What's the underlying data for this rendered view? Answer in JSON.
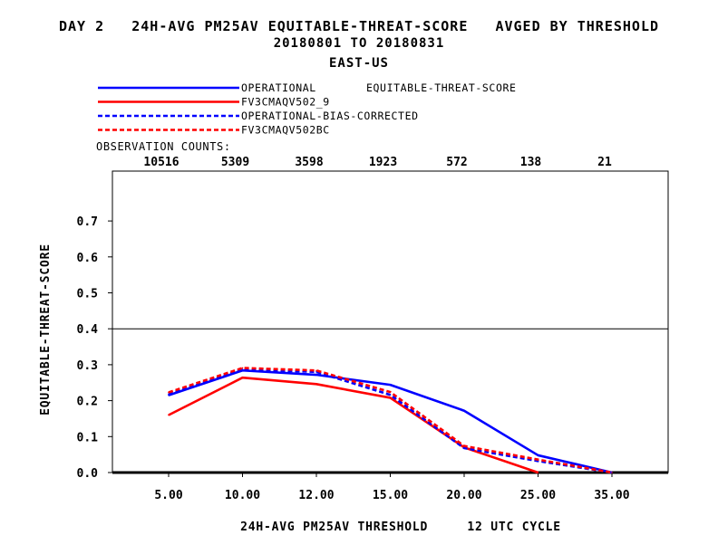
{
  "title": {
    "line1": "DAY 2   24H-AVG PM25AV EQUITABLE-THREAT-SCORE   AVGED BY THRESHOLD",
    "line2": "20180801 TO 20180831",
    "line3": "EAST-US"
  },
  "legend": {
    "metric_label": "EQUITABLE-THREAT-SCORE",
    "obs_counts_label": "OBSERVATION COUNTS:",
    "obs_counts": [
      "10516",
      "5309",
      "3598",
      "1923",
      "572",
      "138",
      "21"
    ]
  },
  "chart_data": {
    "type": "line",
    "xlabel": "24H-AVG PM25AV THRESHOLD     12 UTC CYCLE",
    "ylabel": "EQUITABLE-THREAT-SCORE",
    "categories": [
      "5.00",
      "10.00",
      "12.00",
      "15.00",
      "20.00",
      "25.00",
      "35.00"
    ],
    "ylim": [
      0,
      0.85
    ],
    "yticks": [
      "0.0",
      "0.1",
      "0.2",
      "0.3",
      "0.4",
      "0.5",
      "0.6",
      "0.7"
    ],
    "reference_line": 0.4,
    "grid": false,
    "legend_position": "top-left",
    "series": [
      {
        "name": "OPERATIONAL",
        "color": "#0000ff",
        "dashed": false,
        "values": [
          0.215,
          0.284,
          0.272,
          0.244,
          0.172,
          0.048,
          0.0
        ]
      },
      {
        "name": "FV3CMAQV502_9",
        "color": "#ff0000",
        "dashed": false,
        "values": [
          0.16,
          0.264,
          0.246,
          0.208,
          0.07,
          0.0,
          null
        ]
      },
      {
        "name": "OPERATIONAL-BIAS-CORRECTED",
        "color": "#0000ff",
        "dashed": true,
        "values": [
          0.218,
          0.287,
          0.28,
          0.216,
          0.068,
          0.032,
          0.0
        ]
      },
      {
        "name": "FV3CMAQV502BC",
        "color": "#ff0000",
        "dashed": true,
        "values": [
          0.223,
          0.291,
          0.284,
          0.224,
          0.074,
          0.036,
          0.0
        ]
      }
    ]
  }
}
